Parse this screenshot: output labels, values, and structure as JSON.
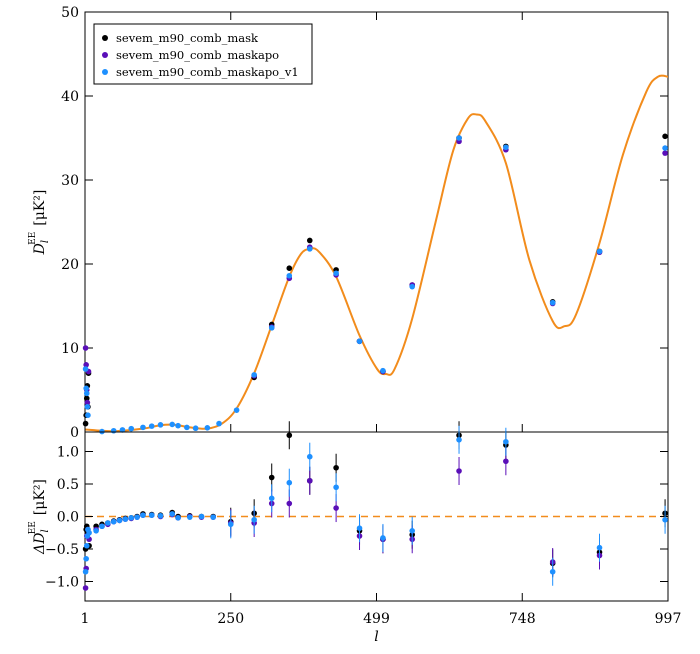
{
  "chart_data": {
    "type": "scatter",
    "xlabel": "l",
    "x_ticks": [
      1,
      250,
      499,
      748,
      997
    ],
    "xlim": [
      1,
      997
    ],
    "colors": {
      "theory": "#f28c1c",
      "mask": "#000000",
      "maskapo": "#5a0fb8",
      "maskapo_v1": "#1e90ff",
      "zero_line": "#f28c1c"
    },
    "legend": {
      "placement": "top-left",
      "entries": [
        {
          "key": "mask",
          "label": "sevem_m90_comb_mask"
        },
        {
          "key": "maskapo",
          "label": "sevem_m90_comb_maskapo"
        },
        {
          "key": "maskapo_v1",
          "label": "sevem_m90_comb_maskapo_v1"
        }
      ]
    },
    "top": {
      "ylabel_main": "D",
      "ylabel_sub": "l",
      "ylabel_sup": "EE",
      "ylabel_unit": "[μK²]",
      "ylim": [
        0,
        50
      ],
      "y_ticks": [
        0,
        10,
        20,
        30,
        40,
        50
      ],
      "theory": [
        [
          1,
          0.3
        ],
        [
          50,
          0.1
        ],
        [
          100,
          0.4
        ],
        [
          130,
          0.8
        ],
        [
          155,
          0.85
        ],
        [
          180,
          0.55
        ],
        [
          210,
          0.4
        ],
        [
          235,
          1.0
        ],
        [
          260,
          2.8
        ],
        [
          290,
          7.0
        ],
        [
          320,
          12.7
        ],
        [
          350,
          18.5
        ],
        [
          370,
          21.2
        ],
        [
          385,
          21.8
        ],
        [
          400,
          21.5
        ],
        [
          430,
          18.5
        ],
        [
          470,
          11.5
        ],
        [
          500,
          7.5
        ],
        [
          515,
          6.9
        ],
        [
          530,
          7.5
        ],
        [
          560,
          13.5
        ],
        [
          600,
          25.0
        ],
        [
          630,
          33.5
        ],
        [
          655,
          37.3
        ],
        [
          670,
          37.8
        ],
        [
          685,
          37.0
        ],
        [
          720,
          32.0
        ],
        [
          760,
          20.5
        ],
        [
          800,
          13.2
        ],
        [
          820,
          12.6
        ],
        [
          840,
          14.0
        ],
        [
          880,
          22.5
        ],
        [
          920,
          33.0
        ],
        [
          960,
          40.5
        ],
        [
          980,
          42.3
        ],
        [
          997,
          42.3
        ]
      ],
      "series": {
        "mask": [
          [
            2,
            1.0
          ],
          [
            3,
            2.0
          ],
          [
            4,
            4.0
          ],
          [
            5,
            5.5
          ],
          [
            6,
            3.0
          ],
          [
            7,
            7.0
          ],
          [
            290,
            6.5
          ],
          [
            320,
            12.8
          ],
          [
            350,
            19.5
          ],
          [
            385,
            22.8
          ],
          [
            430,
            19.3
          ],
          [
            470,
            10.8
          ],
          [
            510,
            7.2
          ],
          [
            560,
            17.5
          ],
          [
            640,
            35.0
          ],
          [
            720,
            34.0
          ],
          [
            800,
            15.5
          ],
          [
            880,
            21.5
          ],
          [
            992,
            35.2
          ]
        ],
        "maskapo": [
          [
            2,
            10.0
          ],
          [
            3,
            8.0
          ],
          [
            4,
            5.0
          ],
          [
            5,
            3.5
          ],
          [
            7,
            7.2
          ],
          [
            290,
            6.7
          ],
          [
            320,
            12.5
          ],
          [
            350,
            18.3
          ],
          [
            385,
            22.0
          ],
          [
            430,
            18.7
          ],
          [
            470,
            10.8
          ],
          [
            510,
            7.2
          ],
          [
            560,
            17.5
          ],
          [
            640,
            34.6
          ],
          [
            720,
            33.6
          ],
          [
            800,
            15.3
          ],
          [
            880,
            21.4
          ],
          [
            992,
            33.2
          ]
        ],
        "maskapo_v1": [
          [
            2,
            7.5
          ],
          [
            3,
            5.2
          ],
          [
            4,
            4.6
          ],
          [
            5,
            3.0
          ],
          [
            6,
            2.0
          ],
          [
            30,
            0.05
          ],
          [
            50,
            0.15
          ],
          [
            65,
            0.25
          ],
          [
            80,
            0.4
          ],
          [
            100,
            0.55
          ],
          [
            115,
            0.7
          ],
          [
            130,
            0.85
          ],
          [
            150,
            0.9
          ],
          [
            160,
            0.75
          ],
          [
            175,
            0.55
          ],
          [
            190,
            0.45
          ],
          [
            210,
            0.5
          ],
          [
            230,
            1.0
          ],
          [
            260,
            2.6
          ],
          [
            290,
            6.8
          ],
          [
            320,
            12.4
          ],
          [
            350,
            18.6
          ],
          [
            385,
            21.8
          ],
          [
            430,
            18.9
          ],
          [
            470,
            10.8
          ],
          [
            510,
            7.3
          ],
          [
            560,
            17.3
          ],
          [
            640,
            35.0
          ],
          [
            720,
            33.9
          ],
          [
            800,
            15.4
          ],
          [
            880,
            21.5
          ],
          [
            992,
            33.8
          ]
        ]
      }
    },
    "bottom": {
      "ylabel_main": "ΔD",
      "ylabel_sub": "l",
      "ylabel_sup": "EE",
      "ylabel_unit": "[μK²]",
      "ylim": [
        -1.3,
        1.3
      ],
      "y_ticks": [
        -1.0,
        -0.5,
        0.0,
        0.5,
        1.0
      ],
      "y_tick_labels": [
        "−1.0",
        "−0.5",
        "0.0",
        "0.5",
        "1.0"
      ],
      "zero_line": 0,
      "series": {
        "mask": [
          [
            2,
            -0.5
          ],
          [
            3,
            -0.2
          ],
          [
            4,
            -0.15
          ],
          [
            6,
            -0.25
          ],
          [
            8,
            -0.45
          ],
          [
            20,
            -0.15
          ],
          [
            30,
            -0.12
          ],
          [
            40,
            -0.1
          ],
          [
            50,
            -0.07
          ],
          [
            60,
            -0.05
          ],
          [
            70,
            -0.03
          ],
          [
            80,
            -0.02
          ],
          [
            90,
            0.0
          ],
          [
            100,
            0.04
          ],
          [
            115,
            0.03
          ],
          [
            130,
            0.02
          ],
          [
            150,
            0.06
          ],
          [
            160,
            0.0
          ],
          [
            180,
            0.01
          ],
          [
            200,
            0.0
          ],
          [
            220,
            0.0
          ],
          [
            250,
            -0.08
          ],
          [
            290,
            0.05
          ],
          [
            320,
            0.6
          ],
          [
            350,
            1.25
          ],
          [
            385,
            0.55
          ],
          [
            430,
            0.75
          ],
          [
            470,
            -0.22
          ],
          [
            510,
            -0.35
          ],
          [
            560,
            -0.28
          ],
          [
            640,
            1.25
          ],
          [
            720,
            1.1
          ],
          [
            800,
            -0.72
          ],
          [
            880,
            -0.55
          ],
          [
            992,
            0.05
          ]
        ],
        "maskapo": [
          [
            2,
            -1.1
          ],
          [
            3,
            -0.8
          ],
          [
            4,
            -0.3
          ],
          [
            6,
            -0.2
          ],
          [
            8,
            -0.35
          ],
          [
            20,
            -0.2
          ],
          [
            30,
            -0.15
          ],
          [
            40,
            -0.12
          ],
          [
            50,
            -0.08
          ],
          [
            60,
            -0.06
          ],
          [
            70,
            -0.04
          ],
          [
            80,
            -0.03
          ],
          [
            90,
            -0.01
          ],
          [
            100,
            0.02
          ],
          [
            115,
            0.02
          ],
          [
            130,
            0.0
          ],
          [
            150,
            0.03
          ],
          [
            160,
            -0.02
          ],
          [
            180,
            0.0
          ],
          [
            200,
            -0.01
          ],
          [
            220,
            -0.01
          ],
          [
            250,
            -0.1
          ],
          [
            290,
            -0.1
          ],
          [
            320,
            0.2
          ],
          [
            350,
            0.2
          ],
          [
            385,
            0.55
          ],
          [
            430,
            0.13
          ],
          [
            470,
            -0.3
          ],
          [
            510,
            -0.35
          ],
          [
            560,
            -0.35
          ],
          [
            640,
            0.7
          ],
          [
            720,
            0.85
          ],
          [
            800,
            -0.7
          ],
          [
            880,
            -0.6
          ]
        ],
        "maskapo_v1": [
          [
            2,
            -0.85
          ],
          [
            3,
            -0.65
          ],
          [
            4,
            -0.45
          ],
          [
            5,
            -0.3
          ],
          [
            6,
            -0.2
          ],
          [
            8,
            -0.25
          ],
          [
            20,
            -0.22
          ],
          [
            30,
            -0.15
          ],
          [
            40,
            -0.1
          ],
          [
            50,
            -0.08
          ],
          [
            60,
            -0.06
          ],
          [
            70,
            -0.04
          ],
          [
            80,
            -0.02
          ],
          [
            90,
            -0.01
          ],
          [
            100,
            0.02
          ],
          [
            115,
            0.02
          ],
          [
            130,
            0.01
          ],
          [
            150,
            0.04
          ],
          [
            160,
            -0.02
          ],
          [
            180,
            -0.01
          ],
          [
            200,
            0.0
          ],
          [
            220,
            -0.01
          ],
          [
            250,
            -0.12
          ],
          [
            290,
            -0.05
          ],
          [
            320,
            0.28
          ],
          [
            350,
            0.52
          ],
          [
            385,
            0.92
          ],
          [
            430,
            0.45
          ],
          [
            470,
            -0.18
          ],
          [
            510,
            -0.33
          ],
          [
            560,
            -0.22
          ],
          [
            640,
            1.18
          ],
          [
            720,
            1.15
          ],
          [
            800,
            -0.85
          ],
          [
            880,
            -0.48
          ],
          [
            992,
            -0.05
          ]
        ]
      }
    }
  }
}
